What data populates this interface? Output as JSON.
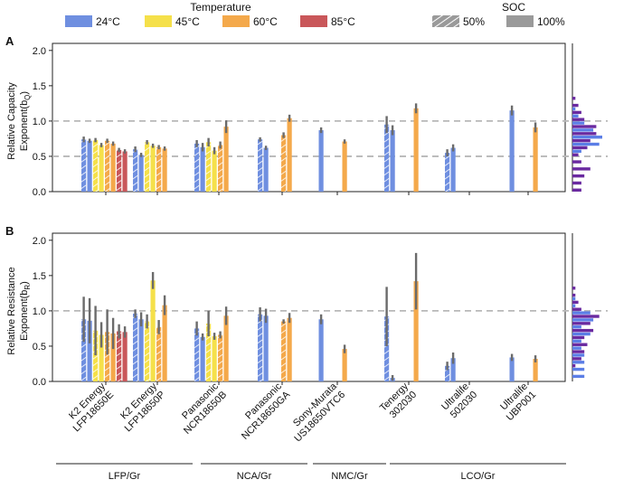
{
  "legend": {
    "temperature_title": "Temperature",
    "temperature_items": [
      {
        "label": "24°C",
        "color": "#6f8fe0"
      },
      {
        "label": "45°C",
        "color": "#f5e04a"
      },
      {
        "label": "60°C",
        "color": "#f4a94b"
      },
      {
        "label": "85°C",
        "color": "#c9575a"
      }
    ],
    "soc_title": "SOC",
    "soc_items": [
      {
        "label": "50%",
        "hatched": true
      },
      {
        "label": "100%",
        "hatched": false
      }
    ]
  },
  "cells": [
    {
      "manufacturer": "K2 Energy",
      "model": "LFP18650E"
    },
    {
      "manufacturer": "K2 Energy",
      "model": "LFP18650P"
    },
    {
      "manufacturer": "Panasonic",
      "model": "NCR18650B"
    },
    {
      "manufacturer": "Panasonic",
      "model": "NCR18650GA"
    },
    {
      "manufacturer": "Sony-Murata",
      "model": "US18650VTC6"
    },
    {
      "manufacturer": "Tenergy",
      "model": "302030"
    },
    {
      "manufacturer": "Ultralife",
      "model": "502030"
    },
    {
      "manufacturer": "Ultralife",
      "model": "UBP001"
    }
  ],
  "chemistry_groups": [
    {
      "label": "LFP/Gr",
      "first_cell": 0,
      "last_cell": 1
    },
    {
      "label": "NCA/Gr",
      "first_cell": 2,
      "last_cell": 3
    },
    {
      "label": "NMC/Gr",
      "first_cell": 4,
      "last_cell": 4
    },
    {
      "label": "LCO/Gr",
      "first_cell": 5,
      "last_cell": 7
    }
  ],
  "chart_data": [
    {
      "panel": "A",
      "type": "bar",
      "ylabel_line1": "Relative Capacity",
      "ylabel_line2": "Exponent(b",
      "ylabel_sub": "Q",
      "ylabel_end": ")",
      "ylim": [
        0,
        2.1
      ],
      "yticks": [
        "0.0",
        "0.5",
        "1.0",
        "1.5",
        "2.0"
      ],
      "reference_lines": [
        0.5,
        1.0
      ],
      "bars": [
        {
          "cell": 0,
          "temp": "24°C",
          "soc": "50%",
          "value": 0.74,
          "err": 0.04
        },
        {
          "cell": 0,
          "temp": "24°C",
          "soc": "100%",
          "value": 0.72,
          "err": 0.03
        },
        {
          "cell": 0,
          "temp": "45°C",
          "soc": "50%",
          "value": 0.73,
          "err": 0.03
        },
        {
          "cell": 0,
          "temp": "45°C",
          "soc": "100%",
          "value": 0.66,
          "err": 0.03
        },
        {
          "cell": 0,
          "temp": "60°C",
          "soc": "50%",
          "value": 0.72,
          "err": 0.03
        },
        {
          "cell": 0,
          "temp": "60°C",
          "soc": "100%",
          "value": 0.68,
          "err": 0.03
        },
        {
          "cell": 0,
          "temp": "85°C",
          "soc": "50%",
          "value": 0.59,
          "err": 0.03
        },
        {
          "cell": 0,
          "temp": "85°C",
          "soc": "100%",
          "value": 0.57,
          "err": 0.03
        },
        {
          "cell": 1,
          "temp": "24°C",
          "soc": "50%",
          "value": 0.6,
          "err": 0.04
        },
        {
          "cell": 1,
          "temp": "24°C",
          "soc": "100%",
          "value": 0.52,
          "err": 0.03
        },
        {
          "cell": 1,
          "temp": "45°C",
          "soc": "50%",
          "value": 0.7,
          "err": 0.03
        },
        {
          "cell": 1,
          "temp": "45°C",
          "soc": "100%",
          "value": 0.65,
          "err": 0.03
        },
        {
          "cell": 1,
          "temp": "60°C",
          "soc": "50%",
          "value": 0.63,
          "err": 0.03
        },
        {
          "cell": 1,
          "temp": "60°C",
          "soc": "100%",
          "value": 0.61,
          "err": 0.03
        },
        {
          "cell": 2,
          "temp": "24°C",
          "soc": "50%",
          "value": 0.68,
          "err": 0.05
        },
        {
          "cell": 2,
          "temp": "24°C",
          "soc": "100%",
          "value": 0.63,
          "err": 0.06
        },
        {
          "cell": 2,
          "temp": "45°C",
          "soc": "50%",
          "value": 0.7,
          "err": 0.06
        },
        {
          "cell": 2,
          "temp": "45°C",
          "soc": "100%",
          "value": 0.58,
          "err": 0.05
        },
        {
          "cell": 2,
          "temp": "60°C",
          "soc": "50%",
          "value": 0.66,
          "err": 0.05
        },
        {
          "cell": 2,
          "temp": "60°C",
          "soc": "100%",
          "value": 0.92,
          "err": 0.09
        },
        {
          "cell": 3,
          "temp": "24°C",
          "soc": "50%",
          "value": 0.74,
          "err": 0.03
        },
        {
          "cell": 3,
          "temp": "24°C",
          "soc": "100%",
          "value": 0.62,
          "err": 0.03
        },
        {
          "cell": 3,
          "temp": "60°C",
          "soc": "50%",
          "value": 0.8,
          "err": 0.04
        },
        {
          "cell": 3,
          "temp": "60°C",
          "soc": "100%",
          "value": 1.04,
          "err": 0.05
        },
        {
          "cell": 4,
          "temp": "24°C",
          "soc": "100%",
          "value": 0.87,
          "err": 0.04
        },
        {
          "cell": 4,
          "temp": "60°C",
          "soc": "100%",
          "value": 0.71,
          "err": 0.03
        },
        {
          "cell": 5,
          "temp": "24°C",
          "soc": "50%",
          "value": 0.95,
          "err": 0.12
        },
        {
          "cell": 5,
          "temp": "24°C",
          "soc": "100%",
          "value": 0.87,
          "err": 0.07
        },
        {
          "cell": 5,
          "temp": "60°C",
          "soc": "100%",
          "value": 1.18,
          "err": 0.07
        },
        {
          "cell": 6,
          "temp": "24°C",
          "soc": "50%",
          "value": 0.55,
          "err": 0.05
        },
        {
          "cell": 6,
          "temp": "24°C",
          "soc": "100%",
          "value": 0.62,
          "err": 0.05
        },
        {
          "cell": 7,
          "temp": "24°C",
          "soc": "100%",
          "value": 1.15,
          "err": 0.07
        },
        {
          "cell": 7,
          "temp": "60°C",
          "soc": "100%",
          "value": 0.91,
          "err": 0.07
        }
      ],
      "histogram": {
        "bin_width": 0.1,
        "bins": [
          {
            "y": 0.05,
            "blue": 0,
            "purple": 3
          },
          {
            "y": 0.15,
            "blue": 0,
            "purple": 3
          },
          {
            "y": 0.25,
            "blue": 0,
            "purple": 4
          },
          {
            "y": 0.35,
            "blue": 0,
            "purple": 6
          },
          {
            "y": 0.45,
            "blue": 0,
            "purple": 3
          },
          {
            "y": 0.55,
            "blue": 3,
            "purple": 2
          },
          {
            "y": 0.65,
            "blue": 9,
            "purple": 5
          },
          {
            "y": 0.75,
            "blue": 10,
            "purple": 6
          },
          {
            "y": 0.85,
            "blue": 7,
            "purple": 8
          },
          {
            "y": 0.95,
            "blue": 4,
            "purple": 8
          },
          {
            "y": 1.05,
            "blue": 2,
            "purple": 4
          },
          {
            "y": 1.15,
            "blue": 1,
            "purple": 3
          },
          {
            "y": 1.25,
            "blue": 0,
            "purple": 2
          },
          {
            "y": 1.35,
            "blue": 0,
            "purple": 1
          }
        ]
      }
    },
    {
      "panel": "B",
      "type": "bar",
      "ylabel_line1": "Relative Resistance",
      "ylabel_line2": "Exponent(b",
      "ylabel_sub": "R",
      "ylabel_end": ")",
      "ylim": [
        0,
        2.1
      ],
      "yticks": [
        "0.0",
        "0.5",
        "1.0",
        "1.5",
        "2.0"
      ],
      "reference_lines": [
        1.0
      ],
      "bars": [
        {
          "cell": 0,
          "temp": "24°C",
          "soc": "50%",
          "value": 0.88,
          "err": 0.32
        },
        {
          "cell": 0,
          "temp": "24°C",
          "soc": "100%",
          "value": 0.86,
          "err": 0.32
        },
        {
          "cell": 0,
          "temp": "45°C",
          "soc": "50%",
          "value": 0.72,
          "err": 0.35
        },
        {
          "cell": 0,
          "temp": "45°C",
          "soc": "100%",
          "value": 0.66,
          "err": 0.18
        },
        {
          "cell": 0,
          "temp": "60°C",
          "soc": "50%",
          "value": 0.7,
          "err": 0.32
        },
        {
          "cell": 0,
          "temp": "60°C",
          "soc": "100%",
          "value": 0.68,
          "err": 0.22
        },
        {
          "cell": 0,
          "temp": "85°C",
          "soc": "50%",
          "value": 0.71,
          "err": 0.1
        },
        {
          "cell": 0,
          "temp": "85°C",
          "soc": "100%",
          "value": 0.7,
          "err": 0.08
        },
        {
          "cell": 1,
          "temp": "24°C",
          "soc": "50%",
          "value": 0.96,
          "err": 0.06
        },
        {
          "cell": 1,
          "temp": "24°C",
          "soc": "100%",
          "value": 0.88,
          "err": 0.1
        },
        {
          "cell": 1,
          "temp": "45°C",
          "soc": "50%",
          "value": 0.85,
          "err": 0.1
        },
        {
          "cell": 1,
          "temp": "45°C",
          "soc": "100%",
          "value": 1.43,
          "err": 0.12
        },
        {
          "cell": 1,
          "temp": "60°C",
          "soc": "50%",
          "value": 0.77,
          "err": 0.1
        },
        {
          "cell": 1,
          "temp": "60°C",
          "soc": "100%",
          "value": 1.08,
          "err": 0.14
        },
        {
          "cell": 2,
          "temp": "24°C",
          "soc": "50%",
          "value": 0.75,
          "err": 0.1
        },
        {
          "cell": 2,
          "temp": "24°C",
          "soc": "100%",
          "value": 0.63,
          "err": 0.05
        },
        {
          "cell": 2,
          "temp": "45°C",
          "soc": "50%",
          "value": 0.82,
          "err": 0.18
        },
        {
          "cell": 2,
          "temp": "45°C",
          "soc": "100%",
          "value": 0.64,
          "err": 0.05
        },
        {
          "cell": 2,
          "temp": "60°C",
          "soc": "50%",
          "value": 0.66,
          "err": 0.05
        },
        {
          "cell": 2,
          "temp": "60°C",
          "soc": "100%",
          "value": 0.93,
          "err": 0.13
        },
        {
          "cell": 3,
          "temp": "24°C",
          "soc": "50%",
          "value": 0.95,
          "err": 0.1
        },
        {
          "cell": 3,
          "temp": "24°C",
          "soc": "100%",
          "value": 0.93,
          "err": 0.1
        },
        {
          "cell": 3,
          "temp": "60°C",
          "soc": "50%",
          "value": 0.85,
          "err": 0.03
        },
        {
          "cell": 3,
          "temp": "60°C",
          "soc": "100%",
          "value": 0.9,
          "err": 0.07
        },
        {
          "cell": 4,
          "temp": "24°C",
          "soc": "100%",
          "value": 0.88,
          "err": 0.07
        },
        {
          "cell": 4,
          "temp": "60°C",
          "soc": "100%",
          "value": 0.46,
          "err": 0.06
        },
        {
          "cell": 5,
          "temp": "24°C",
          "soc": "50%",
          "value": 0.92,
          "err": 0.42
        },
        {
          "cell": 5,
          "temp": "24°C",
          "soc": "100%",
          "value": 0.05,
          "err": 0.04
        },
        {
          "cell": 5,
          "temp": "60°C",
          "soc": "100%",
          "value": 1.42,
          "err": 0.4
        },
        {
          "cell": 6,
          "temp": "24°C",
          "soc": "50%",
          "value": 0.22,
          "err": 0.06
        },
        {
          "cell": 6,
          "temp": "24°C",
          "soc": "100%",
          "value": 0.33,
          "err": 0.08
        },
        {
          "cell": 7,
          "temp": "24°C",
          "soc": "100%",
          "value": 0.34,
          "err": 0.05
        },
        {
          "cell": 7,
          "temp": "60°C",
          "soc": "100%",
          "value": 0.32,
          "err": 0.05
        }
      ],
      "histogram": {
        "bin_width": 0.1,
        "bins": [
          {
            "y": 0.05,
            "blue": 4,
            "purple": 0
          },
          {
            "y": 0.15,
            "blue": 4,
            "purple": 0
          },
          {
            "y": 0.25,
            "blue": 4,
            "purple": 1
          },
          {
            "y": 0.35,
            "blue": 4,
            "purple": 3
          },
          {
            "y": 0.45,
            "blue": 3,
            "purple": 4
          },
          {
            "y": 0.55,
            "blue": 3,
            "purple": 5
          },
          {
            "y": 0.65,
            "blue": 6,
            "purple": 4
          },
          {
            "y": 0.75,
            "blue": 3,
            "purple": 7
          },
          {
            "y": 0.85,
            "blue": 7,
            "purple": 6
          },
          {
            "y": 0.95,
            "blue": 6,
            "purple": 9
          },
          {
            "y": 1.05,
            "blue": 1,
            "purple": 3
          },
          {
            "y": 1.15,
            "blue": 1,
            "purple": 2
          },
          {
            "y": 1.25,
            "blue": 0,
            "purple": 1
          },
          {
            "y": 1.35,
            "blue": 0,
            "purple": 1
          }
        ]
      }
    }
  ]
}
